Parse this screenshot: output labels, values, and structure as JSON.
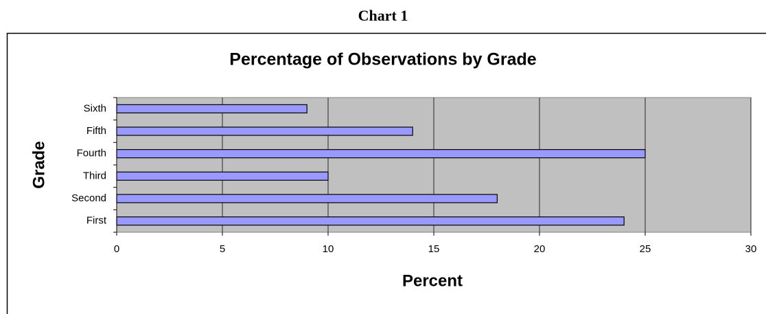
{
  "caption": "Chart 1",
  "chart_data": {
    "type": "barh",
    "title": "Percentage of Observations by Grade",
    "xlabel": "Percent",
    "ylabel": "Grade",
    "categories": [
      "First",
      "Second",
      "Third",
      "Fourth",
      "Fifth",
      "Sixth"
    ],
    "values": [
      24,
      18,
      10,
      25,
      14,
      9
    ],
    "color": "#9999ff",
    "xlim": [
      0,
      30
    ],
    "xticks": [
      0,
      5,
      10,
      15,
      20,
      25,
      30
    ],
    "grid": true
  }
}
